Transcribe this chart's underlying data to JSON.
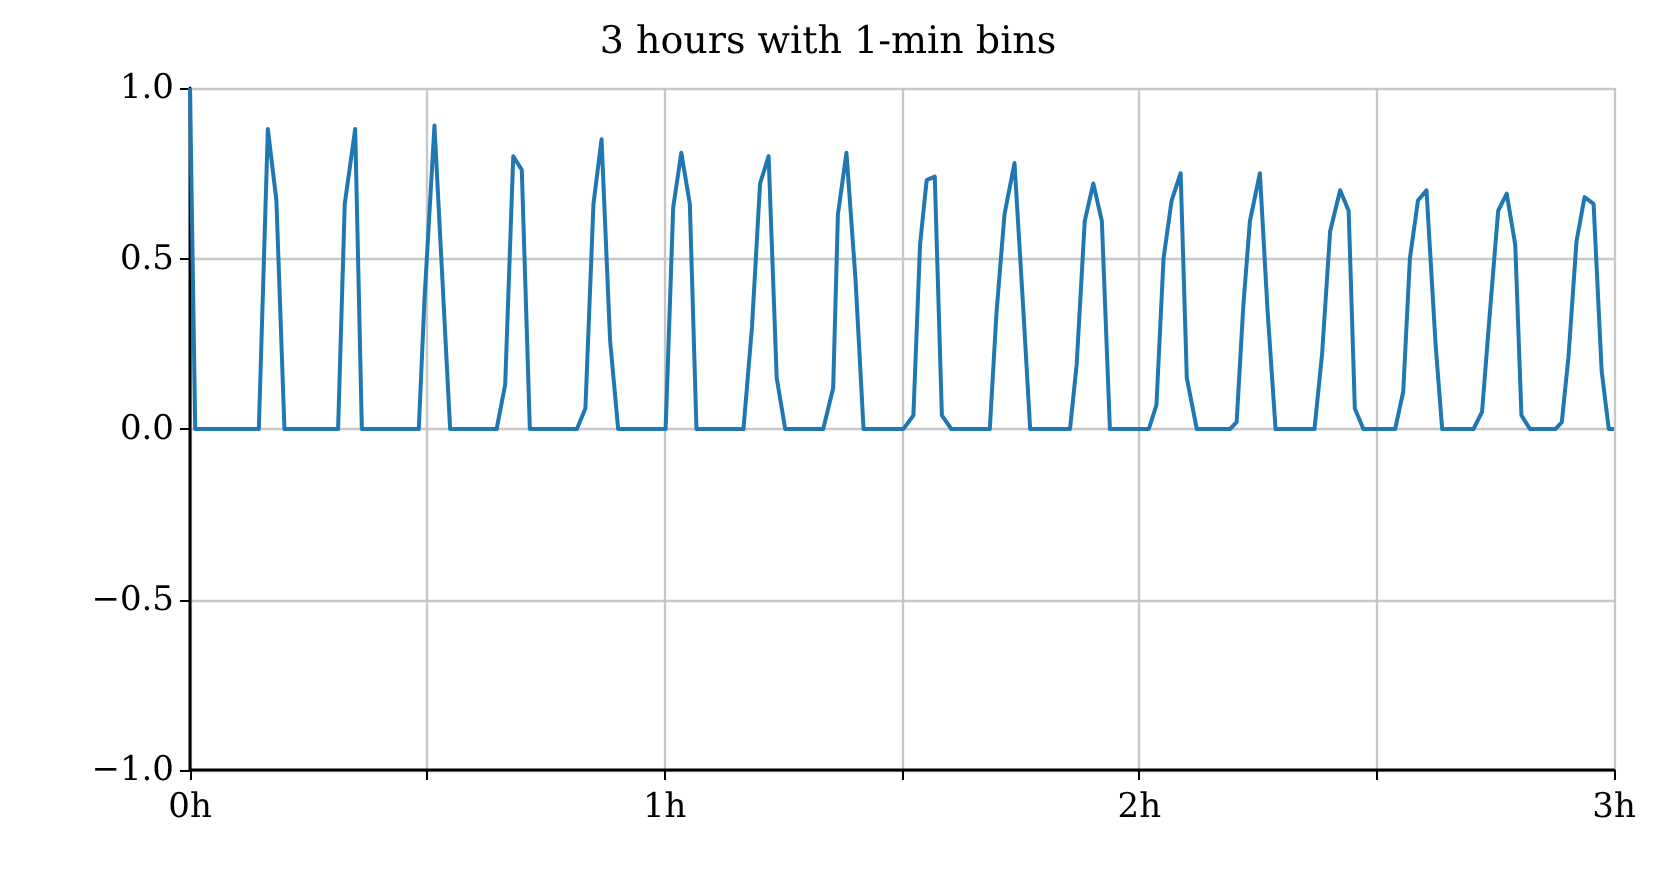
{
  "chart_data": {
    "type": "line",
    "title": "3 hours with 1-min bins",
    "color": "#1f77b4",
    "grid": true,
    "xlim": [
      0,
      3
    ],
    "xticks": [
      {
        "value": 0,
        "label": "0h"
      },
      {
        "value": 0.5,
        "label": null
      },
      {
        "value": 1,
        "label": "1h"
      },
      {
        "value": 1.5,
        "label": null
      },
      {
        "value": 2,
        "label": "2h"
      },
      {
        "value": 2.5,
        "label": null
      },
      {
        "value": 3,
        "label": "3h"
      }
    ],
    "ylim": [
      -1,
      1
    ],
    "yticks": [
      {
        "value": -1,
        "label": "−1.0"
      },
      {
        "value": -0.5,
        "label": "−0.5"
      },
      {
        "value": 0,
        "label": "0.0"
      },
      {
        "value": 0.5,
        "label": "0.5"
      },
      {
        "value": 1,
        "label": "1.0"
      }
    ],
    "x": [
      0,
      0.011,
      0.145,
      0.164,
      0.182,
      0.199,
      0.312,
      0.326,
      0.348,
      0.362,
      0.482,
      0.494,
      0.515,
      0.548,
      0.646,
      0.664,
      0.681,
      0.699,
      0.716,
      0.815,
      0.833,
      0.85,
      0.867,
      0.885,
      0.902,
      1.002,
      1.018,
      1.035,
      1.053,
      1.067,
      1.166,
      1.184,
      1.201,
      1.219,
      1.236,
      1.254,
      1.334,
      1.355,
      1.365,
      1.383,
      1.402,
      1.419,
      1.503,
      1.524,
      1.538,
      1.552,
      1.569,
      1.584,
      1.604,
      1.685,
      1.699,
      1.716,
      1.737,
      1.756,
      1.77,
      1.854,
      1.868,
      1.885,
      1.903,
      1.921,
      1.938,
      2.02,
      2.036,
      2.051,
      2.068,
      2.087,
      2.1,
      2.121,
      2.191,
      2.205,
      2.219,
      2.233,
      2.254,
      2.27,
      2.287,
      2.369,
      2.385,
      2.402,
      2.423,
      2.441,
      2.454,
      2.472,
      2.539,
      2.556,
      2.57,
      2.587,
      2.605,
      2.624,
      2.638,
      2.704,
      2.722,
      2.739,
      2.756,
      2.774,
      2.792,
      2.805,
      2.823,
      2.877,
      2.89,
      2.904,
      2.921,
      2.938,
      2.957,
      2.974,
      2.989,
      3
    ],
    "values": [
      1,
      0,
      0,
      0.88,
      0.67,
      0,
      0,
      0.66,
      0.88,
      0,
      0,
      0.38,
      0.89,
      0,
      0,
      0.13,
      0.8,
      0.76,
      0,
      0,
      0.06,
      0.66,
      0.85,
      0.26,
      0,
      0,
      0.65,
      0.81,
      0.66,
      0,
      0,
      0.3,
      0.72,
      0.8,
      0.15,
      0,
      0,
      0.12,
      0.63,
      0.81,
      0.44,
      0,
      0,
      0.04,
      0.54,
      0.73,
      0.74,
      0.04,
      0,
      0,
      0.34,
      0.63,
      0.78,
      0.34,
      0,
      0,
      0.19,
      0.61,
      0.72,
      0.61,
      0,
      0,
      0.07,
      0.5,
      0.67,
      0.75,
      0.15,
      0,
      0,
      0.02,
      0.36,
      0.61,
      0.75,
      0.35,
      0,
      0,
      0.22,
      0.58,
      0.7,
      0.64,
      0.06,
      0,
      0,
      0.11,
      0.5,
      0.67,
      0.7,
      0.25,
      0,
      0,
      0.05,
      0.35,
      0.64,
      0.69,
      0.54,
      0.04,
      0,
      0,
      0.02,
      0.21,
      0.55,
      0.68,
      0.66,
      0.17,
      0,
      0
    ]
  }
}
